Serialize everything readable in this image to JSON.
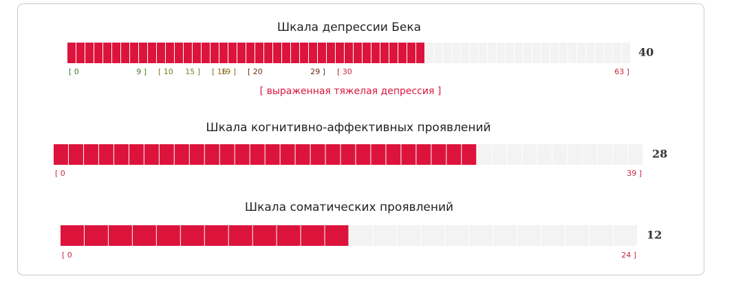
{
  "scales": [
    {
      "title": "Шкала депрессии Бека",
      "value": 40,
      "ticks": [
        {
          "value": 0,
          "label": "[ 0",
          "color": "#3d7a2a"
        },
        {
          "value": 9,
          "label": "9 ]",
          "color": "#3d7a2a"
        },
        {
          "value": 10,
          "label": "[ 10",
          "color": "#7d7a1e"
        },
        {
          "value": 15,
          "label": "15 ]",
          "color": "#7d7a1e"
        },
        {
          "value": 16,
          "label": "[ 16",
          "color": "#8a6a1a"
        },
        {
          "value": 19,
          "label": "19 ]",
          "color": "#8a6a1a"
        },
        {
          "value": 20,
          "label": "[ 20",
          "color": "#6b2a12"
        },
        {
          "value": 29,
          "label": "29 ]",
          "color": "#6b2a12"
        },
        {
          "value": 30,
          "label": "[ 30",
          "color": "#c8243c"
        },
        {
          "value": 63,
          "label": "63 ]",
          "color": "#c8243c"
        }
      ],
      "interpretation": "[ выраженная тяжелая депрессия ]"
    },
    {
      "title": "Шкала когнитивно-аффективных проявлений",
      "value": 28,
      "ticks": [
        {
          "value": 0,
          "label": "[ 0",
          "color": "#c8243c"
        },
        {
          "value": 39,
          "label": "39 ]",
          "color": "#c8243c"
        }
      ]
    },
    {
      "title": "Шкала соматических проявлений",
      "value": 12,
      "ticks": [
        {
          "value": 0,
          "label": "[ 0",
          "color": "#c8243c"
        },
        {
          "value": 24,
          "label": "24 ]",
          "color": "#c8243c"
        }
      ]
    }
  ],
  "fill_color": "#dc143c",
  "empty_color": "#f3f3f3"
}
